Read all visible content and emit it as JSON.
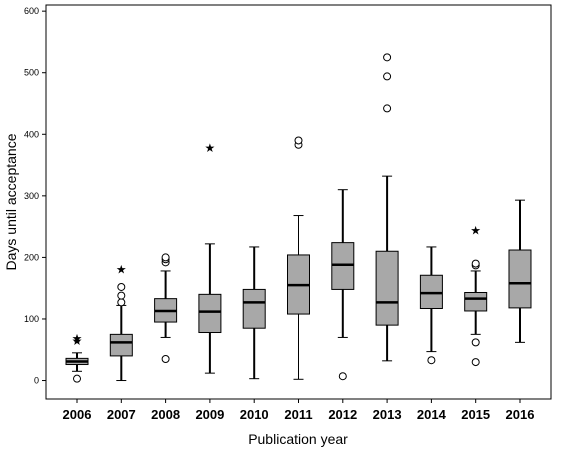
{
  "chart_data": {
    "type": "boxplot",
    "xlabel": "Publication year",
    "ylabel": "Days until acceptance",
    "ylim": [
      -30,
      610
    ],
    "yticks": [
      0,
      100,
      200,
      300,
      400,
      500,
      600
    ],
    "grid": false,
    "box_fill": "#a8a8a8",
    "categories": [
      "2006",
      "2007",
      "2008",
      "2009",
      "2010",
      "2011",
      "2012",
      "2013",
      "2014",
      "2015",
      "2016"
    ],
    "boxes": [
      {
        "min": 15,
        "q1": 26,
        "median": 31,
        "q3": 36,
        "max": 45,
        "outliers": [
          3
        ],
        "extremes": [
          66,
          70
        ]
      },
      {
        "min": 0,
        "q1": 40,
        "median": 62,
        "q3": 75,
        "max": 122,
        "outliers": [
          127,
          138,
          152
        ],
        "extremes": [
          182
        ]
      },
      {
        "min": 70,
        "q1": 95,
        "median": 113,
        "q3": 133,
        "max": 178,
        "outliers": [
          35,
          192,
          197,
          200
        ],
        "extremes": []
      },
      {
        "min": 12,
        "q1": 78,
        "median": 112,
        "q3": 140,
        "max": 222,
        "outliers": [],
        "extremes": [
          379
        ]
      },
      {
        "min": 3,
        "q1": 85,
        "median": 127,
        "q3": 148,
        "max": 217,
        "outliers": [],
        "extremes": []
      },
      {
        "min": 2,
        "q1": 108,
        "median": 155,
        "q3": 204,
        "max": 268,
        "outliers": [
          383,
          390
        ],
        "extremes": []
      },
      {
        "min": 70,
        "q1": 148,
        "median": 188,
        "q3": 224,
        "max": 310,
        "outliers": [
          7
        ],
        "extremes": []
      },
      {
        "min": 32,
        "q1": 90,
        "median": 127,
        "q3": 210,
        "max": 332,
        "outliers": [
          442,
          494,
          525
        ],
        "extremes": []
      },
      {
        "min": 47,
        "q1": 117,
        "median": 142,
        "q3": 171,
        "max": 217,
        "outliers": [
          33
        ],
        "extremes": []
      },
      {
        "min": 75,
        "q1": 113,
        "median": 133,
        "q3": 143,
        "max": 178,
        "outliers": [
          30,
          62,
          187,
          190
        ],
        "extremes": [
          245
        ]
      },
      {
        "min": 62,
        "q1": 118,
        "median": 158,
        "q3": 212,
        "max": 293,
        "outliers": [],
        "extremes": []
      }
    ]
  }
}
